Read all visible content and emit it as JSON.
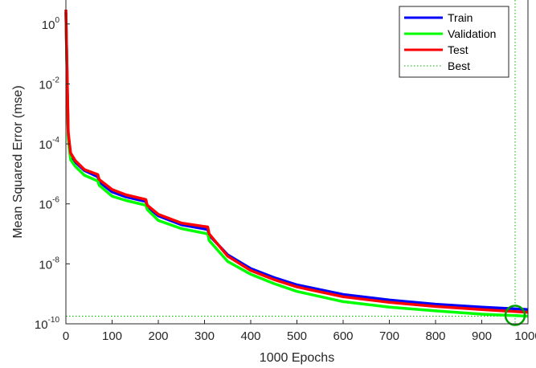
{
  "chart_data": {
    "type": "line",
    "xlabel": "1000 Epochs",
    "ylabel": "Mean Squared Error  (mse)",
    "xlim": [
      0,
      1000
    ],
    "ylim_log10": [
      -10,
      0.8
    ],
    "yscale": "log",
    "grid": false,
    "legend_placement": "top-right",
    "x_ticks": [
      "0",
      "100",
      "200",
      "300",
      "400",
      "500",
      "600",
      "700",
      "800",
      "900",
      "1000"
    ],
    "y_ticks": [
      {
        "base": "10",
        "exp": "0"
      },
      {
        "base": "10",
        "exp": "-2"
      },
      {
        "base": "10",
        "exp": "-4"
      },
      {
        "base": "10",
        "exp": "-6"
      },
      {
        "base": "10",
        "exp": "-8"
      },
      {
        "base": "10",
        "exp": "-10"
      }
    ],
    "series": [
      {
        "name": "Train",
        "color": "#0000ff",
        "x": [
          0,
          2,
          5,
          10,
          20,
          40,
          69,
          72,
          100,
          130,
          173,
          176,
          200,
          250,
          307,
          310,
          350,
          400,
          450,
          500,
          600,
          700,
          800,
          900,
          1000
        ],
        "y": [
          2.5,
          0.05,
          0.0002,
          4.5e-05,
          2.5e-05,
          1.3e-05,
          8e-06,
          5.5e-06,
          2.5e-06,
          1.7e-06,
          1.2e-06,
          8e-07,
          4e-07,
          2e-07,
          1.4e-07,
          9e-08,
          2e-08,
          7e-09,
          3.5e-09,
          2e-09,
          9.5e-10,
          6.2e-10,
          4.5e-10,
          3.6e-10,
          3e-10
        ]
      },
      {
        "name": "Validation",
        "color": "#00ff00",
        "x": [
          0,
          2,
          5,
          10,
          20,
          40,
          69,
          72,
          100,
          130,
          173,
          176,
          200,
          250,
          307,
          310,
          350,
          400,
          450,
          500,
          600,
          700,
          800,
          900,
          1000
        ],
        "y": [
          2.3,
          0.04,
          0.00015,
          3e-05,
          1.8e-05,
          9e-06,
          5.8e-06,
          4.2e-06,
          1.8e-06,
          1.3e-06,
          9e-07,
          6.5e-07,
          2.8e-07,
          1.5e-07,
          1e-07,
          6e-08,
          1.2e-08,
          4.5e-09,
          2.2e-09,
          1.2e-09,
          5.5e-10,
          3.6e-10,
          2.7e-10,
          2.1e-10,
          1.8e-10
        ]
      },
      {
        "name": "Test",
        "color": "#ff0000",
        "x": [
          0,
          2,
          5,
          10,
          20,
          40,
          69,
          72,
          100,
          130,
          173,
          176,
          200,
          250,
          307,
          310,
          350,
          400,
          450,
          500,
          600,
          700,
          800,
          900,
          1000
        ],
        "y": [
          3.0,
          0.06,
          0.00025,
          5e-05,
          2.8e-05,
          1.4e-05,
          9.5e-06,
          6.5e-06,
          3e-06,
          2e-06,
          1.4e-06,
          9e-07,
          4.5e-07,
          2.3e-07,
          1.7e-07,
          1e-07,
          1.8e-08,
          6e-09,
          3e-09,
          1.7e-09,
          8e-10,
          5.2e-10,
          3.8e-10,
          3e-10,
          2.4e-10
        ]
      }
    ],
    "best": {
      "name": "Best",
      "color": "#00b000",
      "epoch": 1000,
      "value": 1.8e-10
    }
  }
}
